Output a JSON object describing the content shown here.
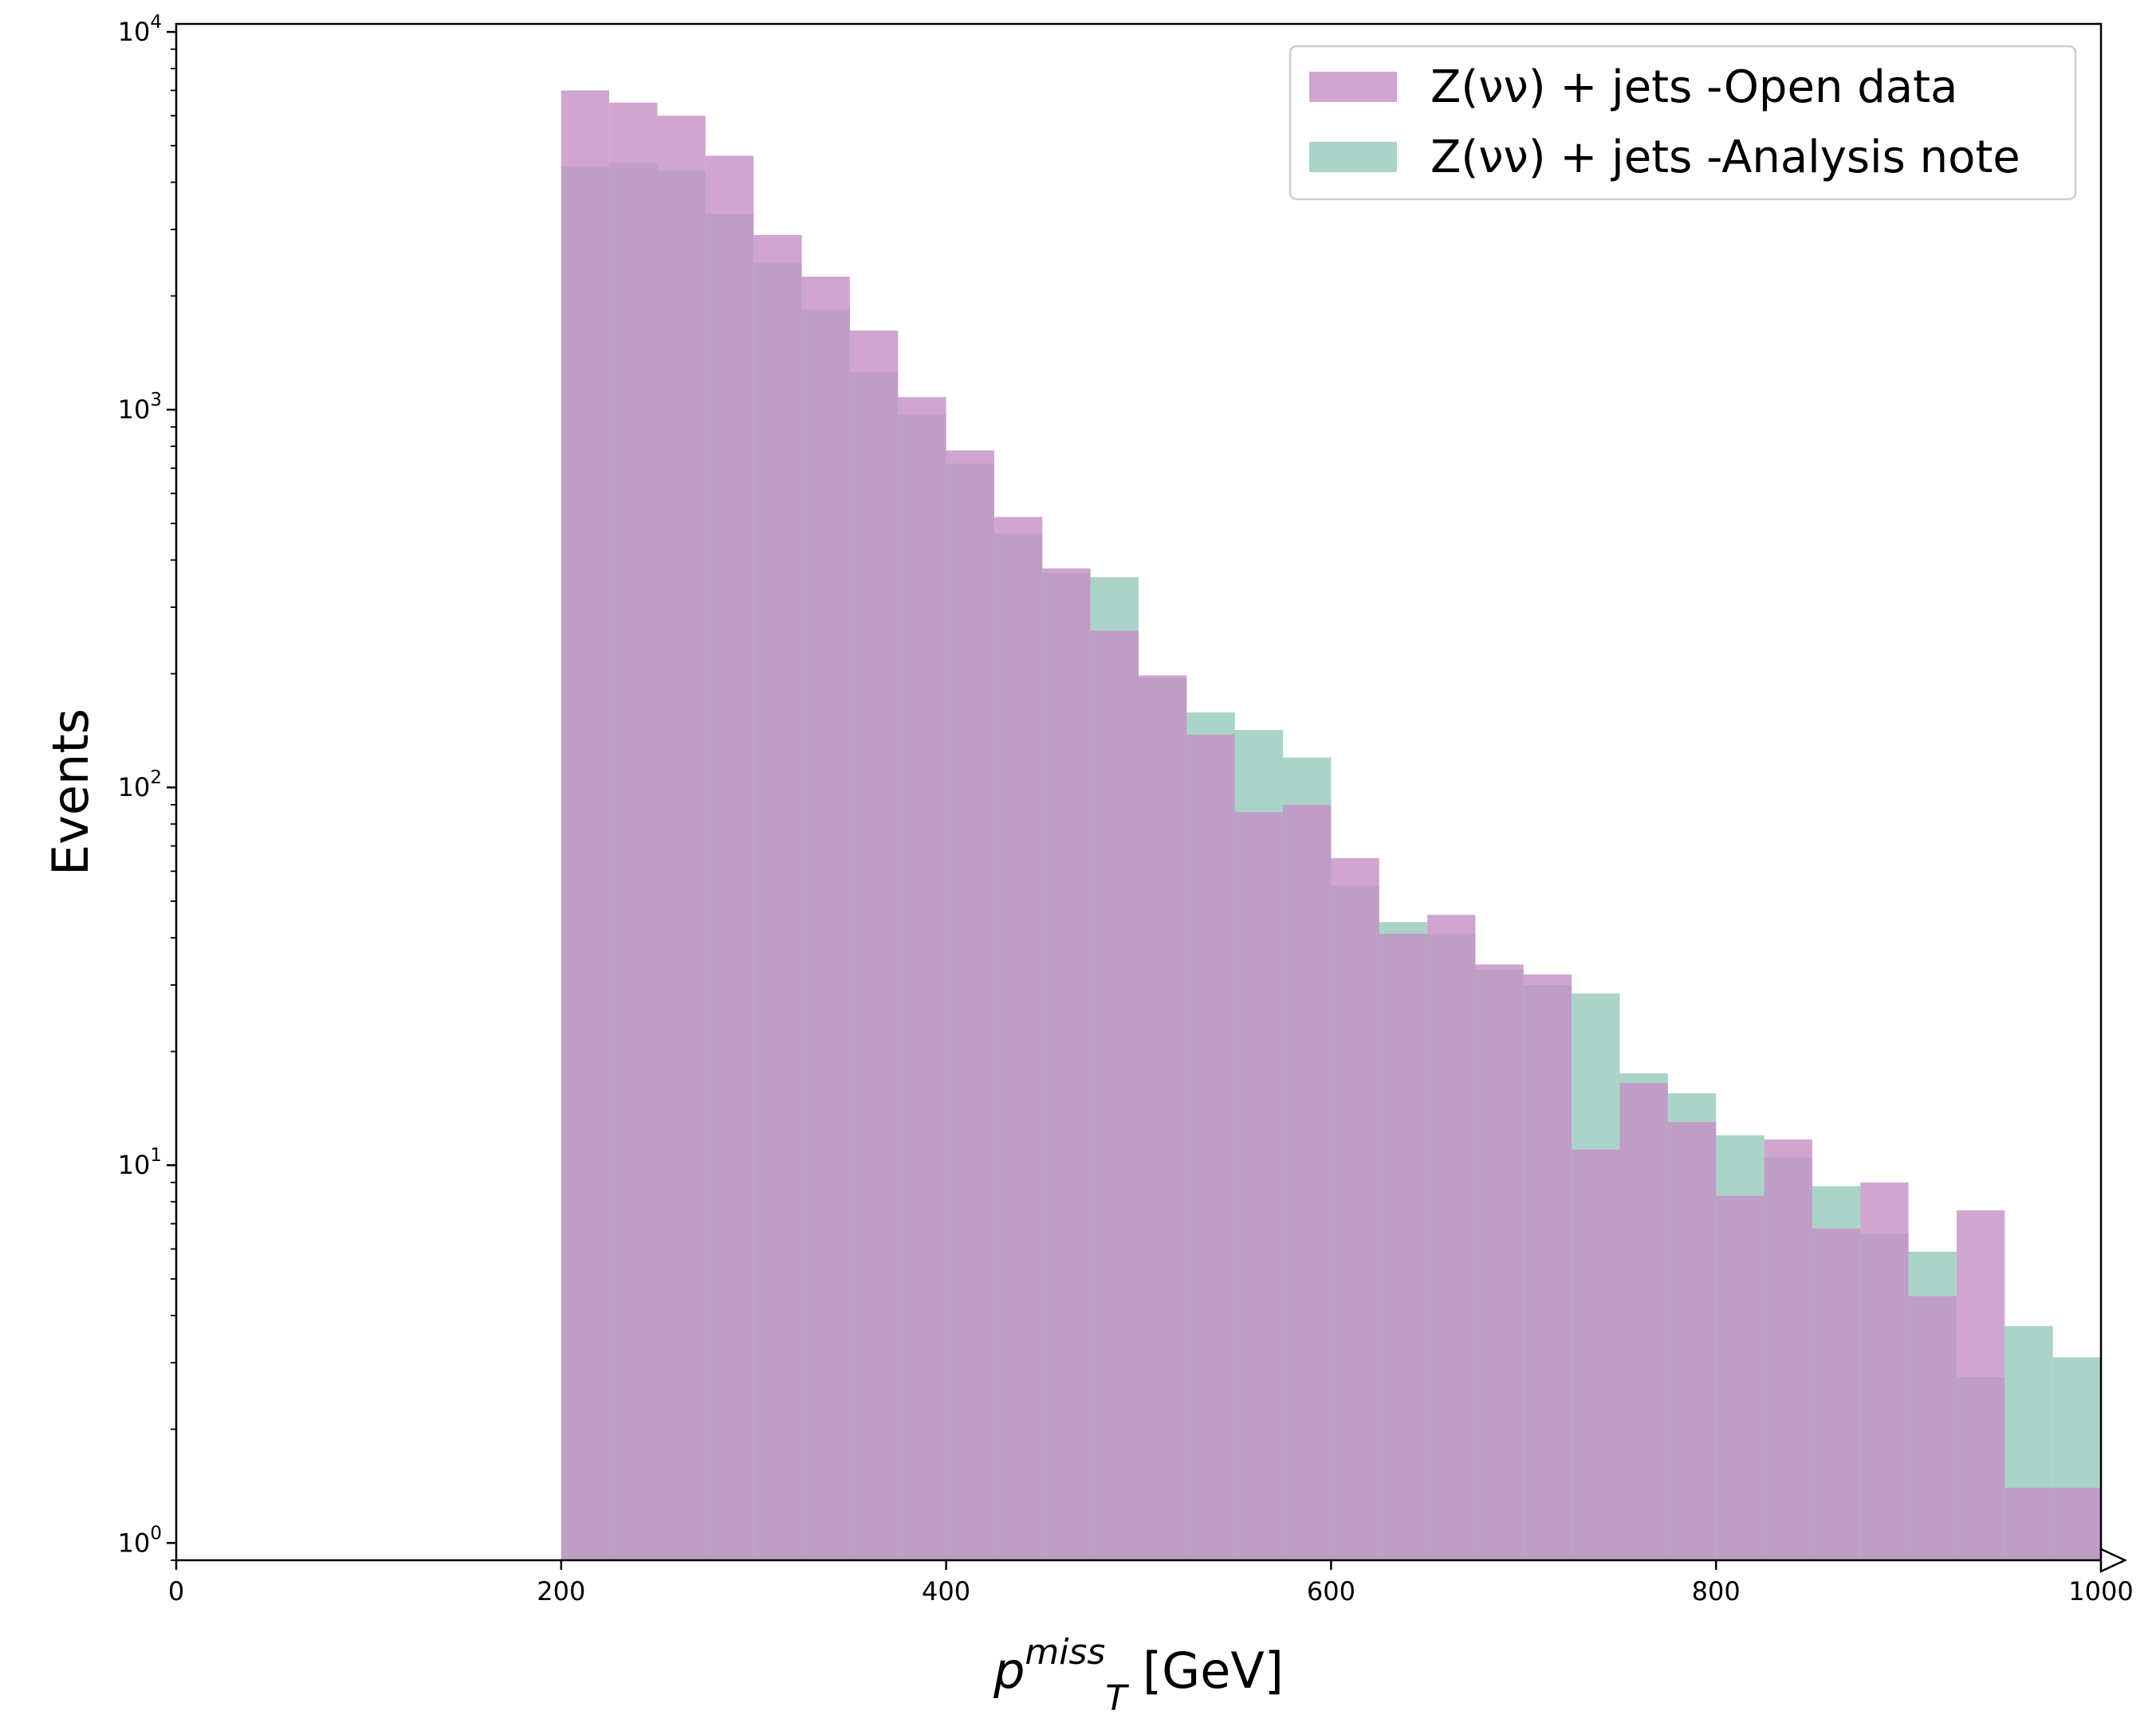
{
  "chart_data": {
    "type": "bar",
    "subtype": "histogram",
    "title": "",
    "xlabel": {
      "base": "p",
      "sub": "T",
      "sup": "miss",
      "suffix": " [GeV]"
    },
    "ylabel": "Events",
    "xlim": [
      0,
      1000
    ],
    "ylim": [
      0.9,
      10500
    ],
    "yscale": "log",
    "grid": false,
    "legend_position": "top-right",
    "x_ticks": [
      "0",
      "200",
      "400",
      "600",
      "800",
      "1000"
    ],
    "y_ticks": [
      {
        "base": "10",
        "exp": "0"
      },
      {
        "base": "10",
        "exp": "1"
      },
      {
        "base": "10",
        "exp": "2"
      },
      {
        "base": "10",
        "exp": "3"
      },
      {
        "base": "10",
        "exp": "4"
      }
    ],
    "bin_width": 25,
    "bin_edges_start": 200,
    "series": [
      {
        "name": "Z(νν) + jets -Open data",
        "color": "#c490c6",
        "values": [
          7000,
          6500,
          6000,
          4700,
          2900,
          2250,
          1620,
          1080,
          780,
          520,
          380,
          260,
          198,
          138,
          86,
          90,
          65,
          41,
          46,
          34,
          32,
          11,
          16.5,
          13,
          8.3,
          11.7,
          6.8,
          9,
          4.5,
          7.6,
          1.4,
          1.4
        ]
      },
      {
        "name": "Z(νν) + jets -Analysis note",
        "color": "#8cc5b4",
        "values": [
          4400,
          4500,
          4300,
          3300,
          2450,
          1840,
          1260,
          970,
          720,
          470,
          370,
          360,
          195,
          158,
          142,
          120,
          55,
          44,
          41,
          33,
          30,
          28.5,
          17.5,
          15.5,
          12,
          10.5,
          8.8,
          6.6,
          5.9,
          2.75,
          3.75,
          3.1
        ]
      }
    ]
  }
}
